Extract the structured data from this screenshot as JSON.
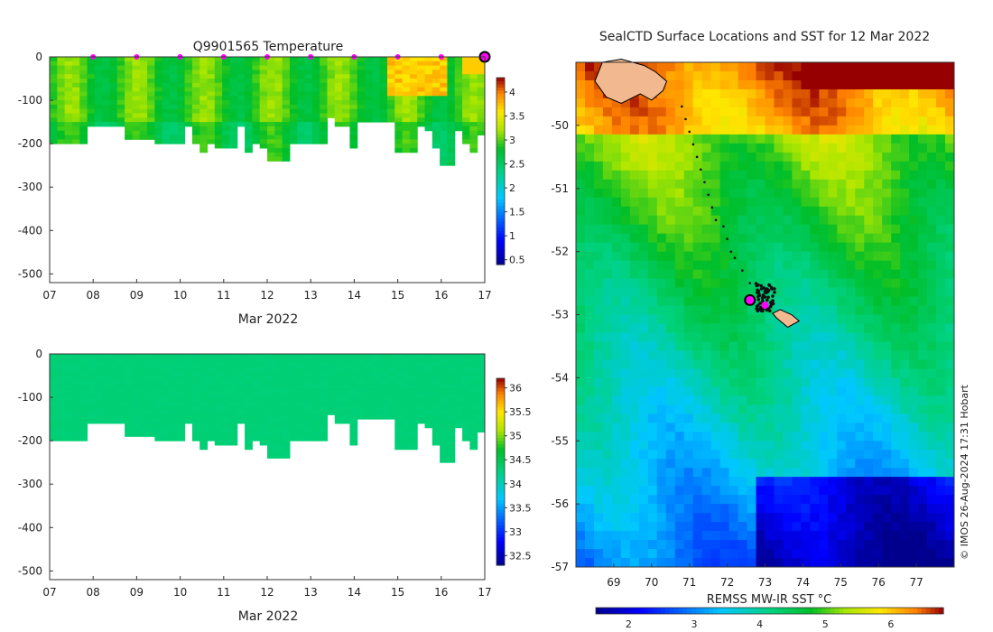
{
  "figure": {
    "credit": "© IMOS 26-Aug-2024 17:31 Hobart"
  },
  "chart_data": [
    {
      "id": "temperature-section",
      "type": "heatmap",
      "title": "Q9901565  Temperature",
      "xlabel": "Mar 2022",
      "ylabel": "",
      "x_ticks": [
        "07",
        "08",
        "09",
        "10",
        "11",
        "12",
        "13",
        "14",
        "15",
        "16",
        "17"
      ],
      "x_range_days": [
        7,
        17
      ],
      "y_ticks": [
        0,
        -100,
        -200,
        -300,
        -400,
        -500
      ],
      "ylim": [
        -520,
        0
      ],
      "colorbar_ticks": [
        0.5,
        1,
        1.5,
        2,
        2.5,
        3,
        3.5,
        4
      ],
      "colorbar_range": [
        0.4,
        4.3
      ],
      "profile_max_depth": [
        200,
        198,
        195,
        195,
        195,
        155,
        155,
        155,
        160,
        160,
        190,
        190,
        190,
        190,
        195,
        195,
        200,
        200,
        160,
        200,
        220,
        200,
        210,
        210,
        210,
        155,
        215,
        200,
        205,
        235,
        235,
        235,
        200,
        200,
        200,
        200,
        200,
        135,
        155,
        155,
        210,
        150,
        150,
        150,
        150,
        150,
        215,
        215,
        215,
        160,
        170,
        210,
        245,
        245,
        170,
        200,
        215,
        180
      ],
      "surface_markers_day": [
        8,
        9,
        10,
        11,
        12,
        13,
        14,
        15,
        16
      ],
      "current_position_day": 17
    },
    {
      "id": "salinity-section",
      "type": "heatmap",
      "title": "",
      "xlabel": "Mar 2022",
      "ylabel": "",
      "x_ticks": [
        "07",
        "08",
        "09",
        "10",
        "11",
        "12",
        "13",
        "14",
        "15",
        "16",
        "17"
      ],
      "x_range_days": [
        7,
        17
      ],
      "y_ticks": [
        0,
        -100,
        -200,
        -300,
        -400,
        -500
      ],
      "ylim": [
        -520,
        0
      ],
      "colorbar_ticks": [
        32.5,
        33,
        33.5,
        34,
        34.5,
        35,
        35.5,
        36
      ],
      "colorbar_range": [
        32.3,
        36.2
      ],
      "salinity_value": 34.3,
      "profile_max_depth": [
        200,
        198,
        195,
        195,
        195,
        155,
        155,
        155,
        160,
        160,
        190,
        190,
        190,
        190,
        195,
        195,
        200,
        200,
        160,
        200,
        220,
        200,
        210,
        210,
        210,
        155,
        215,
        200,
        205,
        235,
        235,
        235,
        200,
        200,
        200,
        200,
        200,
        135,
        155,
        155,
        210,
        150,
        150,
        150,
        150,
        150,
        215,
        215,
        215,
        160,
        170,
        210,
        245,
        245,
        170,
        200,
        215,
        180
      ]
    },
    {
      "id": "sst-map",
      "type": "heatmap",
      "title": "SealCTD Surface Locations and SST for 12 Mar 2022",
      "xlabel": "",
      "ylabel": "",
      "x_ticks": [
        69,
        70,
        71,
        72,
        73,
        74,
        75,
        76,
        77
      ],
      "y_ticks": [
        -50,
        -51,
        -52,
        -53,
        -54,
        -55,
        -56,
        -57
      ],
      "lon_range": [
        68.0,
        78.0
      ],
      "lat_range": [
        -57.0,
        -49.0
      ],
      "colorbar_label": "REMSS MW-IR SST °C",
      "colorbar_ticks": [
        2,
        3,
        4,
        5,
        6
      ],
      "colorbar_range": [
        1.5,
        6.8
      ],
      "track_lon": [
        70.8,
        70.9,
        71.0,
        71.1,
        71.2,
        71.3,
        71.4,
        71.5,
        71.6,
        71.7,
        71.9,
        72.0,
        72.1,
        72.2,
        72.4,
        72.6
      ],
      "track_lat": [
        -49.7,
        -49.9,
        -50.1,
        -50.3,
        -50.5,
        -50.7,
        -50.9,
        -51.1,
        -51.3,
        -51.5,
        -51.6,
        -51.8,
        -52.0,
        -52.1,
        -52.3,
        -52.5
      ],
      "current_position": {
        "lon": 72.6,
        "lat": -52.77
      },
      "magenta_position": {
        "lon": 73.0,
        "lat": -52.85
      },
      "kerguelen_coast_lon": [
        68.7,
        69.2,
        69.8,
        70.1,
        70.4,
        70.3,
        70.0,
        69.7,
        69.2,
        68.8,
        68.5,
        68.7
      ],
      "kerguelen_coast_lat": [
        -49.0,
        -48.95,
        -49.05,
        -49.15,
        -49.3,
        -49.45,
        -49.6,
        -49.5,
        -49.65,
        -49.55,
        -49.3,
        -49.0
      ],
      "heard_coast_lon": [
        73.2,
        73.4,
        73.7,
        73.9,
        73.6,
        73.3,
        73.2
      ],
      "heard_coast_lat": [
        -52.98,
        -52.92,
        -53.0,
        -53.1,
        -53.2,
        -53.05,
        -52.98
      ]
    }
  ]
}
